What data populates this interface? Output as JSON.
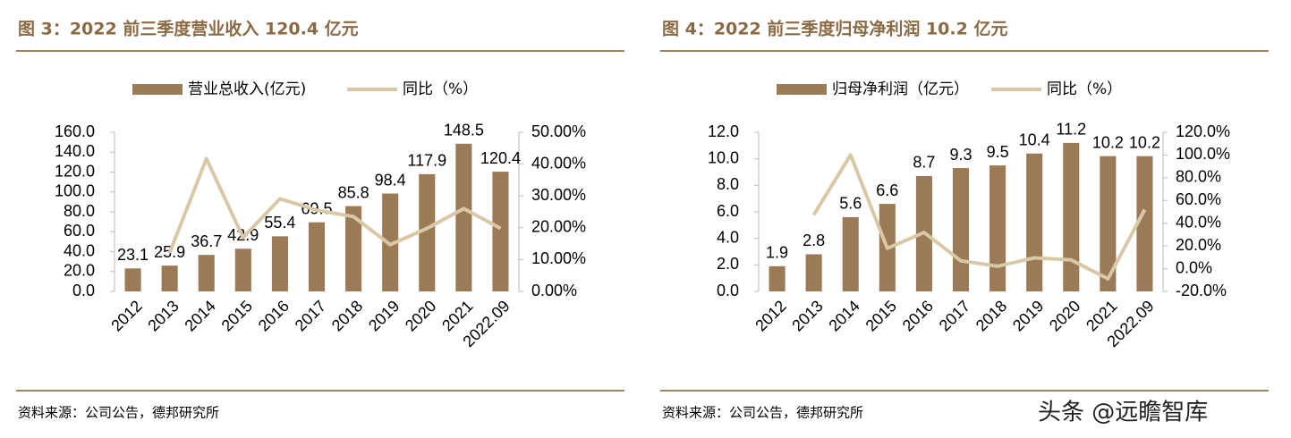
{
  "chart_data": [
    {
      "type": "bar",
      "title": "图 3：2022 前三季度营业收入 120.4 亿元",
      "categories": [
        "2012",
        "2013",
        "2014",
        "2015",
        "2016",
        "2017",
        "2018",
        "2019",
        "2020",
        "2021",
        "2022.09"
      ],
      "series": [
        {
          "name": "营业总收入(亿元)",
          "type": "bar",
          "color": "#9b7b56",
          "values": [
            23.1,
            25.9,
            36.7,
            42.9,
            55.4,
            69.5,
            85.8,
            98.4,
            117.9,
            148.5,
            120.4
          ]
        },
        {
          "name": "同比（%）",
          "type": "line",
          "axis": "y2",
          "color": "#d9c8a6",
          "values": [
            null,
            12.1,
            41.7,
            16.9,
            29.1,
            25.5,
            23.5,
            14.7,
            19.8,
            26.0,
            19.8
          ]
        }
      ],
      "ylim": [
        0,
        160
      ],
      "yticks": [
        {
          "value": 0,
          "label": "0.0"
        },
        {
          "value": 20,
          "label": "20.0"
        },
        {
          "value": 40,
          "label": "40.0"
        },
        {
          "value": 60,
          "label": "60.0"
        },
        {
          "value": 80,
          "label": "80.0"
        },
        {
          "value": 100,
          "label": "100.0"
        },
        {
          "value": 120,
          "label": "120.0"
        },
        {
          "value": 140,
          "label": "140.0"
        },
        {
          "value": 160,
          "label": "160.0"
        }
      ],
      "y2lim": [
        0,
        50
      ],
      "y2ticks": [
        {
          "value": 0,
          "label": "0.00%"
        },
        {
          "value": 10,
          "label": "10.00%"
        },
        {
          "value": 20,
          "label": "20.00%"
        },
        {
          "value": 30,
          "label": "30.00%"
        },
        {
          "value": 40,
          "label": "40.00%"
        },
        {
          "value": 50,
          "label": "50.00%"
        }
      ],
      "legend": "top",
      "source": "资料来源：公司公告，德邦研究所"
    },
    {
      "type": "bar",
      "title": "图 4：2022 前三季度归母净利润 10.2 亿元",
      "categories": [
        "2012",
        "2013",
        "2014",
        "2015",
        "2016",
        "2017",
        "2018",
        "2019",
        "2020",
        "2021",
        "2022.09"
      ],
      "series": [
        {
          "name": "归母净利润（亿元）",
          "type": "bar",
          "color": "#9b7b56",
          "values": [
            1.9,
            2.8,
            5.6,
            6.6,
            8.7,
            9.3,
            9.5,
            10.4,
            11.2,
            10.2,
            10.2
          ]
        },
        {
          "name": "同比（%）",
          "type": "line",
          "axis": "y2",
          "color": "#d9c8a6",
          "values": [
            null,
            47.4,
            100.0,
            17.9,
            31.8,
            6.9,
            2.2,
            9.5,
            7.7,
            -8.9,
            52.0
          ]
        }
      ],
      "ylim": [
        0,
        12
      ],
      "yticks": [
        {
          "value": 0,
          "label": "0.0"
        },
        {
          "value": 2,
          "label": "2.0"
        },
        {
          "value": 4,
          "label": "4.0"
        },
        {
          "value": 6,
          "label": "6.0"
        },
        {
          "value": 8,
          "label": "8.0"
        },
        {
          "value": 10,
          "label": "10.0"
        },
        {
          "value": 12,
          "label": "12.0"
        }
      ],
      "y2lim": [
        -20,
        120
      ],
      "y2ticks": [
        {
          "value": -20,
          "label": "-20.0%"
        },
        {
          "value": 0,
          "label": "0.0%"
        },
        {
          "value": 20,
          "label": "20.0%"
        },
        {
          "value": 40,
          "label": "40.0%"
        },
        {
          "value": 60,
          "label": "60.0%"
        },
        {
          "value": 80,
          "label": "80.0%"
        },
        {
          "value": 100,
          "label": "100.0%"
        },
        {
          "value": 120,
          "label": "120.0%"
        }
      ],
      "legend": "top",
      "source": "资料来源：公司公告，德邦研究所"
    }
  ],
  "watermark": "头条 @远瞻智库"
}
